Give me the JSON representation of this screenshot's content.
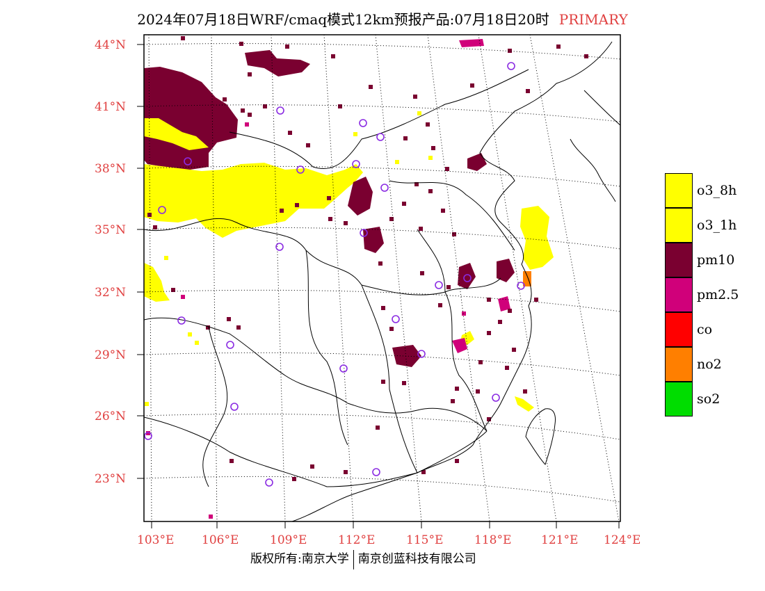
{
  "title": {
    "main": "2024年07月18日WRF/cmaq模式12km预报产品:07月18日20时",
    "tag": "PRIMARY"
  },
  "axes": {
    "lat_labels": [
      "44°N",
      "41°N",
      "38°N",
      "35°N",
      "32°N",
      "29°N",
      "26°N",
      "23°N"
    ],
    "lon_labels": [
      "103°E",
      "106°E",
      "109°E",
      "112°E",
      "115°E",
      "118°E",
      "121°E",
      "124°E"
    ]
  },
  "legend": [
    {
      "label": "o3_8h",
      "color": "#ffff00"
    },
    {
      "label": "o3_1h",
      "color": "#ffff00"
    },
    {
      "label": "pm10",
      "color": "#7a0030"
    },
    {
      "label": "pm2.5",
      "color": "#d0007a"
    },
    {
      "label": "co",
      "color": "#ff0000"
    },
    {
      "label": "no2",
      "color": "#ff7f00"
    },
    {
      "label": "so2",
      "color": "#00dd00"
    }
  ],
  "footer": {
    "left": "版权所有:南京大学",
    "right": "南京创蓝科技有限公司"
  },
  "colors": {
    "station_marker": "#8a2be2",
    "axis_label": "#e04040"
  }
}
